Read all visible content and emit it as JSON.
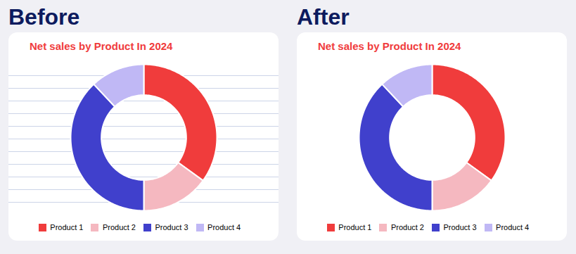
{
  "chart_data": [
    {
      "type": "pie",
      "title": "Net sales by Product In 2024",
      "annotations": [
        "Before"
      ],
      "categories": [
        "Product 1",
        "Product 2",
        "Product 3",
        "Product 4"
      ],
      "values": [
        35,
        15,
        38,
        12
      ],
      "colors": [
        "#f03c3c",
        "#f5b8c0",
        "#4040cc",
        "#c0b8f5"
      ],
      "grid": true,
      "legend": "bottom"
    },
    {
      "type": "pie",
      "title": "Net sales by Product In 2024",
      "annotations": [
        "After"
      ],
      "categories": [
        "Product 1",
        "Product 2",
        "Product 3",
        "Product 4"
      ],
      "values": [
        35,
        15,
        38,
        12
      ],
      "colors": [
        "#f03c3c",
        "#f5b8c0",
        "#4040cc",
        "#c0b8f5"
      ],
      "grid": false,
      "legend": "bottom"
    }
  ]
}
